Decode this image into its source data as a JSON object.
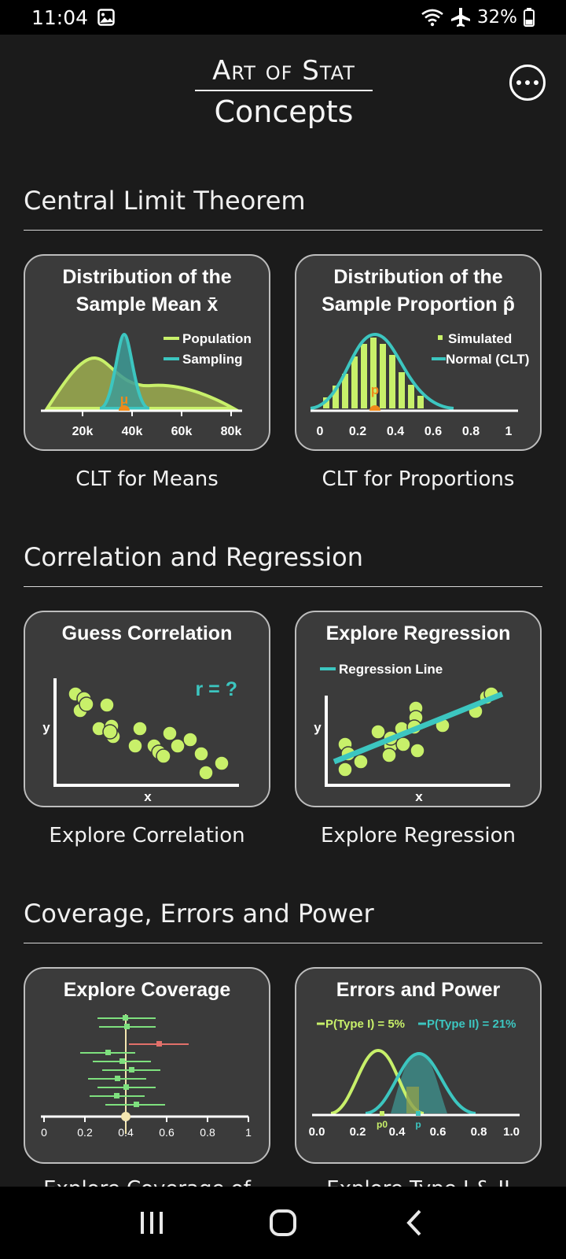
{
  "status": {
    "time": "11:04",
    "battery": "32%"
  },
  "header": {
    "logo_top": "Art of Stat",
    "logo_bottom": "Concepts"
  },
  "sections": [
    {
      "title": "Central Limit Theorem",
      "cards": [
        {
          "title_line1": "Distribution of the",
          "title_line2": "Sample Mean x̄",
          "label": "CLT for Means",
          "legend": [
            "Population",
            "Sampling"
          ],
          "ticks": [
            "20k",
            "40k",
            "60k",
            "80k"
          ],
          "marker": "μ"
        },
        {
          "title_line1": "Distribution of the",
          "title_line2": "Sample Proportion p̂",
          "label": "CLT for Proportions",
          "legend": [
            "Simulated",
            "Normal (CLT)"
          ],
          "ticks": [
            "0",
            "0.2",
            "0.4",
            "0.6",
            "0.8",
            "1"
          ],
          "marker": "p"
        }
      ]
    },
    {
      "title": "Correlation and Regression",
      "cards": [
        {
          "title": "Guess Correlation",
          "label": "Explore Correlation",
          "annotation": "r = ?",
          "xaxis": "x",
          "yaxis": "y"
        },
        {
          "title": "Explore Regression",
          "label": "Explore Regression",
          "legend": "Regression Line",
          "xaxis": "x",
          "yaxis": "y"
        }
      ]
    },
    {
      "title": "Coverage, Errors and Power",
      "cards": [
        {
          "title": "Explore Coverage",
          "label": "Explore Coverage of",
          "ticks": [
            "0",
            "0.2",
            "0.4",
            "0.6",
            "0.8",
            "1"
          ]
        },
        {
          "title": "Errors and Power",
          "label": "Explore Type I & II",
          "legend": [
            "P(Type I) = 5%",
            "P(Type II) = 21%"
          ],
          "ticks": [
            "0.0",
            "0.2",
            "0.4",
            "0.6",
            "0.8",
            "1.0"
          ],
          "marker_p0": "p0",
          "marker_p": "p"
        }
      ]
    }
  ],
  "colors": {
    "lime": "#c8f06a",
    "teal": "#3cc6c0",
    "orange": "#f08a1a",
    "red": "#e2706a",
    "card_bg": "#3b3b3b",
    "page_bg": "#1b1b1b"
  }
}
